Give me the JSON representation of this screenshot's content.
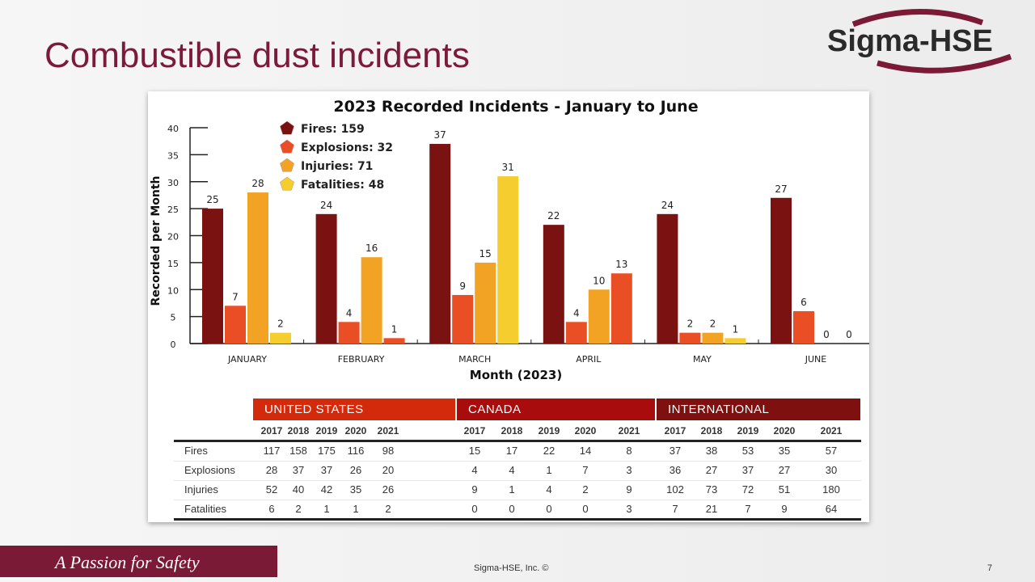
{
  "slide": {
    "title": "Combustible dust incidents",
    "logo_text": "Sigma-HSE",
    "slogan": "A Passion for Safety",
    "copyright": "Sigma-HSE, Inc. ©",
    "page_number": "7"
  },
  "chart_data": {
    "type": "bar",
    "title": "2023 Recorded Incidents - January to June",
    "xlabel": "Month (2023)",
    "ylabel": "Recorded per Month",
    "ylim": [
      0,
      40
    ],
    "yticks": [
      0,
      5,
      10,
      15,
      20,
      25,
      30,
      35,
      40
    ],
    "categories": [
      "JANUARY",
      "FEBRUARY",
      "MARCH",
      "APRIL",
      "MAY",
      "JUNE"
    ],
    "legend_position": "top-left",
    "series": [
      {
        "name": "Fires",
        "legend": "Fires: 159",
        "color": "#7a1212",
        "values": [
          25,
          24,
          37,
          22,
          24,
          27
        ]
      },
      {
        "name": "Explosions",
        "legend": "Explosions: 32",
        "color": "#ea4e24",
        "values": [
          7,
          4,
          9,
          4,
          2,
          6
        ]
      },
      {
        "name": "Injuries",
        "legend": "Injuries: 71",
        "color": "#f2a324",
        "values": [
          28,
          16,
          15,
          10,
          2,
          0
        ]
      },
      {
        "name": "Fatalities",
        "legend": "Fatalities: 48",
        "color": "#f6cd2f",
        "values": [
          2,
          1,
          31,
          13,
          1,
          0
        ],
        "point_colors": [
          "#f6cd2f",
          "#ea4e24",
          "#f6cd2f",
          "#ea4e24",
          "#f6cd2f",
          "#f6cd2f"
        ]
      }
    ]
  },
  "table": {
    "groups": [
      {
        "label": "UNITED STATES",
        "color": "#d42a0c"
      },
      {
        "label": "CANADA",
        "color": "#a80c0c"
      },
      {
        "label": "INTERNATIONAL",
        "color": "#7e1010"
      }
    ],
    "years": [
      "2017",
      "2018",
      "2019",
      "2020",
      "2021"
    ],
    "rows": [
      {
        "label": "Fires",
        "values": [
          "117",
          "158",
          "175",
          "116",
          "98",
          "15",
          "17",
          "22",
          "14",
          "8",
          "37",
          "38",
          "53",
          "35",
          "57"
        ]
      },
      {
        "label": "Explosions",
        "values": [
          "28",
          "37",
          "37",
          "26",
          "20",
          "4",
          "4",
          "1",
          "7",
          "3",
          "36",
          "27",
          "37",
          "27",
          "30"
        ]
      },
      {
        "label": "Injuries",
        "values": [
          "52",
          "40",
          "42",
          "35",
          "26",
          "9",
          "1",
          "4",
          "2",
          "9",
          "102",
          "73",
          "72",
          "51",
          "180"
        ]
      },
      {
        "label": "Fatalities",
        "values": [
          "6",
          "2",
          "1",
          "1",
          "2",
          "0",
          "0",
          "0",
          "0",
          "3",
          "7",
          "21",
          "7",
          "9",
          "64"
        ]
      }
    ]
  }
}
